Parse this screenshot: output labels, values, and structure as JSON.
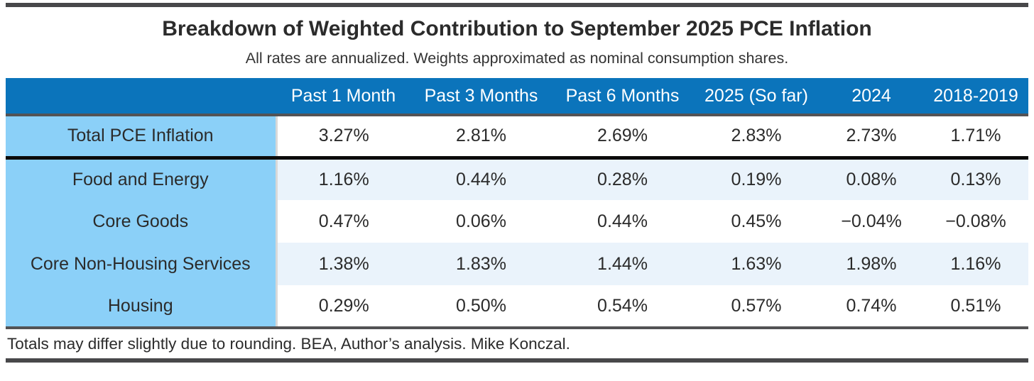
{
  "page": {
    "title": "Breakdown of Weighted Contribution to September 2025 PCE Inflation",
    "subtitle": "All rates are annualized. Weights approximated as nominal consumption shares.",
    "footnote": "Totals may differ slightly due to rounding. BEA, Author’s analysis. Mike Konczal."
  },
  "colors": {
    "header_bg": "#0b74bb",
    "header_text": "#ffffff",
    "row_label_bg": "#8bd0f8",
    "stripe_bg": "#eaf3fb",
    "heavy_rule": "#0b0b0b",
    "gray_rule": "#535355",
    "frame_bar": "#48484a",
    "divider": "#d8d8d8",
    "body_text": "#2b2b2b"
  },
  "chart_data": {
    "type": "table",
    "title": "Breakdown of Weighted Contribution to September 2025 PCE Inflation",
    "subtitle": "All rates are annualized. Weights approximated as nominal consumption shares.",
    "columns": [
      "Past 1 Month",
      "Past 3 Months",
      "Past 6 Months",
      "2025 (So far)",
      "2024",
      "2018-2019"
    ],
    "rows": [
      {
        "label": "Total PCE Inflation",
        "values": [
          "3.27%",
          "2.81%",
          "2.69%",
          "2.83%",
          "2.73%",
          "1.71%"
        ]
      },
      {
        "label": "Food and Energy",
        "values": [
          "1.16%",
          "0.44%",
          "0.28%",
          "0.19%",
          "0.08%",
          "0.13%"
        ]
      },
      {
        "label": "Core Goods",
        "values": [
          "0.47%",
          "0.06%",
          "0.44%",
          "0.45%",
          "−0.04%",
          "−0.08%"
        ]
      },
      {
        "label": "Core Non-Housing Services",
        "values": [
          "1.38%",
          "1.83%",
          "1.44%",
          "1.63%",
          "1.98%",
          "1.16%"
        ]
      },
      {
        "label": "Housing",
        "values": [
          "0.29%",
          "0.50%",
          "0.54%",
          "0.57%",
          "0.74%",
          "0.51%"
        ]
      }
    ],
    "footnote": "Totals may differ slightly due to rounding. BEA, Author’s analysis. Mike Konczal.",
    "layout": {
      "row_label_column_highlighted": true,
      "striped_rows": [
        1,
        3
      ],
      "total_row_index": 0
    }
  }
}
